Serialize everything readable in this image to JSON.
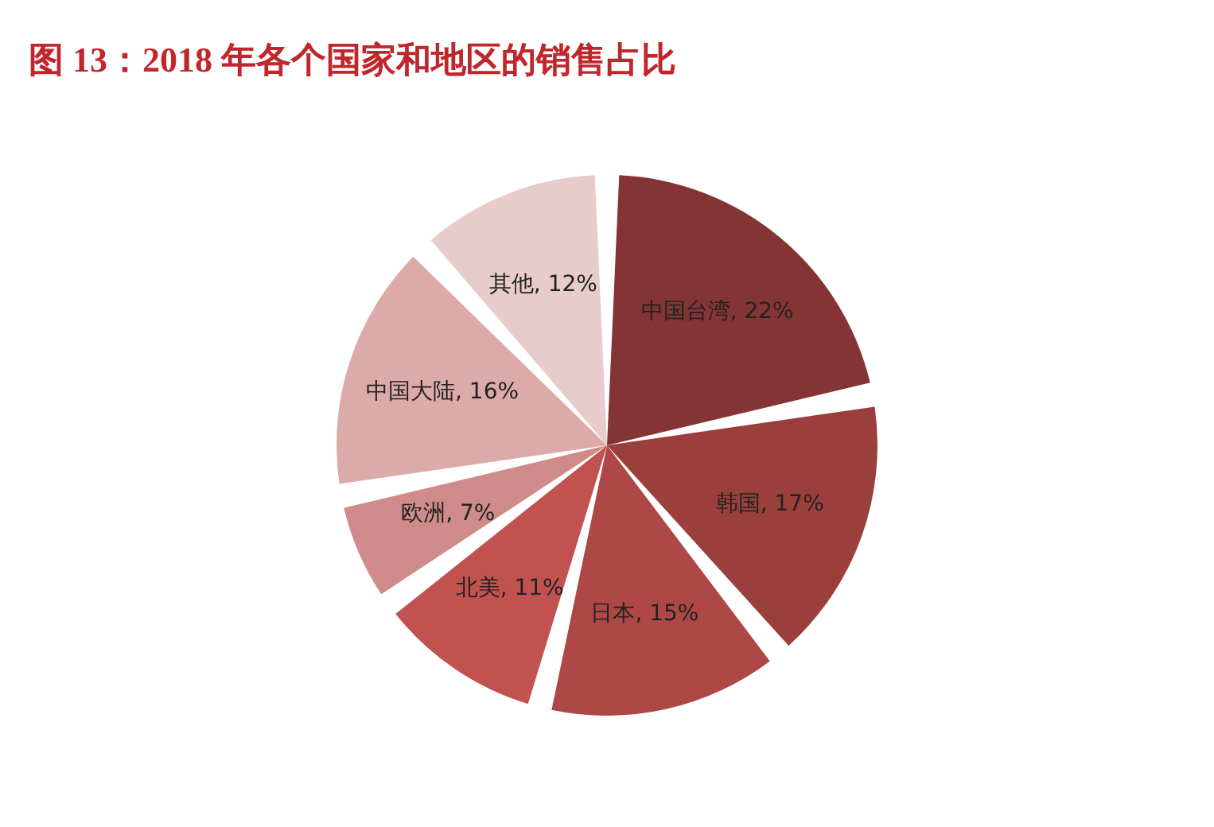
{
  "chart_data": {
    "type": "pie",
    "title": "图  13：2018 年各个国家和地区的销售占比",
    "categories": [
      "中国台湾",
      "韩国",
      "日本",
      "北美",
      "欧洲",
      "中国大陆",
      "其他"
    ],
    "values": [
      22,
      17,
      15,
      11,
      7,
      16,
      12
    ],
    "value_labels": [
      "22%",
      "17%",
      "15%",
      "11%",
      "7%",
      "16%",
      "12%"
    ],
    "colors": [
      "#843434",
      "#9a3f3c",
      "#ad4846",
      "#c15250",
      "#cf8b89",
      "#dcaaa9",
      "#e8cbcb"
    ],
    "legend": false
  }
}
